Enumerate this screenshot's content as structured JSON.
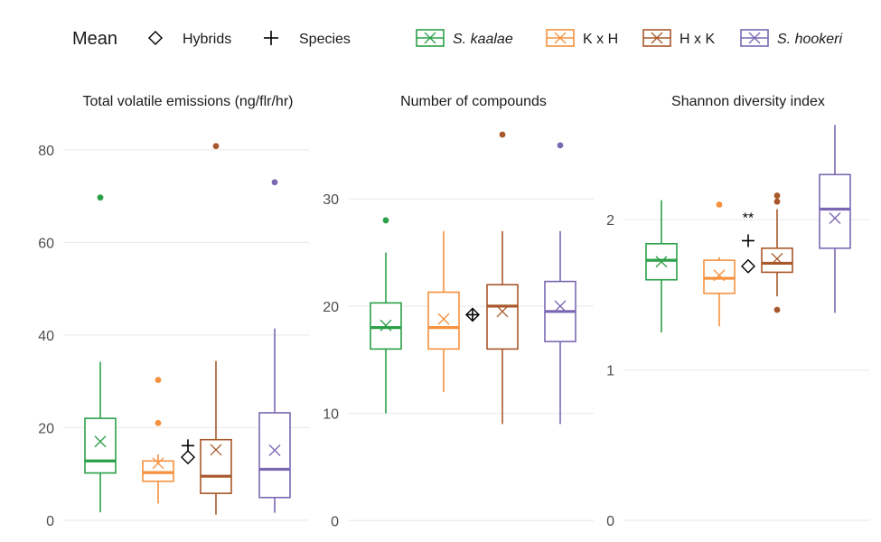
{
  "legend": {
    "mean_title": "Mean",
    "mean_items": [
      {
        "label": "Hybrids",
        "symbol": "diamond"
      },
      {
        "label": "Species",
        "symbol": "plus"
      }
    ],
    "groups": [
      {
        "label": "S. kaalae",
        "italic": true,
        "color": "#2ca048"
      },
      {
        "label": "K x H",
        "italic": false,
        "color": "#f5913e"
      },
      {
        "label": "H x K",
        "italic": false,
        "color": "#a8582a"
      },
      {
        "label": "S. hookeri",
        "italic": true,
        "color": "#7a68b3"
      }
    ]
  },
  "chart_data": [
    {
      "type": "box",
      "title": "Total volatile emissions (ng/flr/hr)",
      "ylim": [
        -1,
        87
      ],
      "yticks": [
        0,
        20,
        40,
        60,
        80
      ],
      "boxes": [
        {
          "group": "S. kaalae",
          "whisker_low": 1.7,
          "q1": 10.2,
          "median": 12.8,
          "q3": 22,
          "whisker_high": 34.2,
          "mean": 17,
          "outliers": [
            69.7
          ]
        },
        {
          "group": "K x H",
          "whisker_low": 3.6,
          "q1": 8.4,
          "median": 10.3,
          "q3": 12.8,
          "whisker_high": 14.2,
          "mean": 12.3,
          "outliers": [
            21,
            30.3
          ]
        },
        {
          "group": "H x K",
          "whisker_low": 1.2,
          "q1": 5.8,
          "median": 9.5,
          "q3": 17.4,
          "whisker_high": 34.4,
          "mean": 15.2,
          "outliers": [
            80.8
          ]
        },
        {
          "group": "S. hookeri",
          "whisker_low": 1.6,
          "q1": 4.9,
          "median": 11,
          "q3": 23.2,
          "whisker_high": 41.4,
          "mean": 15.1,
          "outliers": [
            73
          ]
        }
      ],
      "hybrid_mean": 13.6,
      "species_mean": 16.1,
      "annotation": ""
    },
    {
      "type": "box",
      "title": "Number of compounds",
      "ylim": [
        -0.4,
        37.6
      ],
      "yticks": [
        0,
        10,
        20,
        30
      ],
      "boxes": [
        {
          "group": "S. kaalae",
          "whisker_low": 10,
          "q1": 16,
          "median": 18,
          "q3": 20.3,
          "whisker_high": 25,
          "mean": 18.2,
          "outliers": [
            28
          ]
        },
        {
          "group": "K x H",
          "whisker_low": 12,
          "q1": 16,
          "median": 18,
          "q3": 21.3,
          "whisker_high": 27,
          "mean": 18.8,
          "outliers": []
        },
        {
          "group": "H x K",
          "whisker_low": 9,
          "q1": 16,
          "median": 20,
          "q3": 22,
          "whisker_high": 27,
          "mean": 19.5,
          "outliers": [
            36
          ]
        },
        {
          "group": "S. hookeri",
          "whisker_low": 9,
          "q1": 16.7,
          "median": 19.5,
          "q3": 22.3,
          "whisker_high": 27,
          "mean": 20,
          "outliers": [
            35
          ]
        }
      ],
      "hybrid_mean": 19.2,
      "species_mean": 19.2,
      "annotation": ""
    },
    {
      "type": "box",
      "title": "Shannon diversity index",
      "ylim": [
        -0.03,
        2.68
      ],
      "yticks": [
        0,
        1,
        2
      ],
      "boxes": [
        {
          "group": "S. kaalae",
          "whisker_low": 1.25,
          "q1": 1.6,
          "median": 1.73,
          "q3": 1.84,
          "whisker_high": 2.13,
          "mean": 1.72,
          "outliers": []
        },
        {
          "group": "K x H",
          "whisker_low": 1.29,
          "q1": 1.51,
          "median": 1.61,
          "q3": 1.73,
          "whisker_high": 1.75,
          "mean": 1.63,
          "outliers": [
            2.1
          ]
        },
        {
          "group": "H x K",
          "whisker_low": 1.49,
          "q1": 1.65,
          "median": 1.71,
          "q3": 1.81,
          "whisker_high": 2.07,
          "mean": 1.74,
          "outliers": [
            2.16,
            2.12,
            1.4
          ]
        },
        {
          "group": "S. hookeri",
          "whisker_low": 1.38,
          "q1": 1.81,
          "median": 2.07,
          "q3": 2.3,
          "whisker_high": 2.63,
          "mean": 2.01,
          "outliers": []
        }
      ],
      "hybrid_mean": 1.69,
      "species_mean": 1.86,
      "annotation": "**"
    }
  ]
}
